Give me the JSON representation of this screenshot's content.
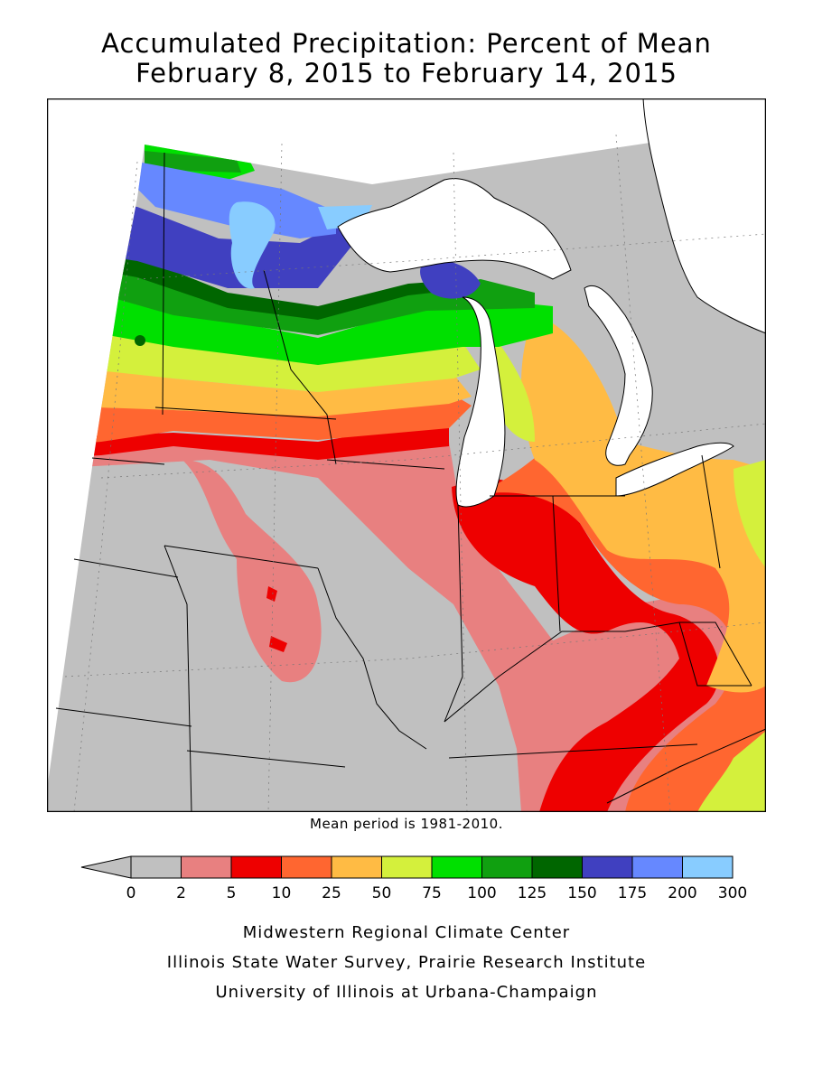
{
  "title": {
    "line1": "Accumulated Precipitation: Percent of Mean",
    "line2": "February 8, 2015 to February 14, 2015"
  },
  "mean_period_note": "Mean period is 1981-2010.",
  "legend": {
    "ticks": [
      "0",
      "2",
      "5",
      "10",
      "25",
      "50",
      "75",
      "100",
      "125",
      "150",
      "175",
      "200",
      "300"
    ],
    "colors": [
      "#c0c0c0",
      "#e88080",
      "#ee0000",
      "#ff6630",
      "#ffbb44",
      "#d4f03c",
      "#00e000",
      "#10a010",
      "#006600",
      "#4040c0",
      "#6688ff",
      "#88ccff"
    ],
    "under_color": "#c0c0c0"
  },
  "credits": {
    "line1": "Midwestern Regional Climate Center",
    "line2": "Illinois State Water Survey, Prairie Research Institute",
    "line3": "University of Illinois at Urbana-Champaign"
  },
  "map": {
    "region": "Midwest",
    "background_color": "#c0c0c0",
    "water_color": "#ffffff",
    "border_color": "#000000"
  }
}
